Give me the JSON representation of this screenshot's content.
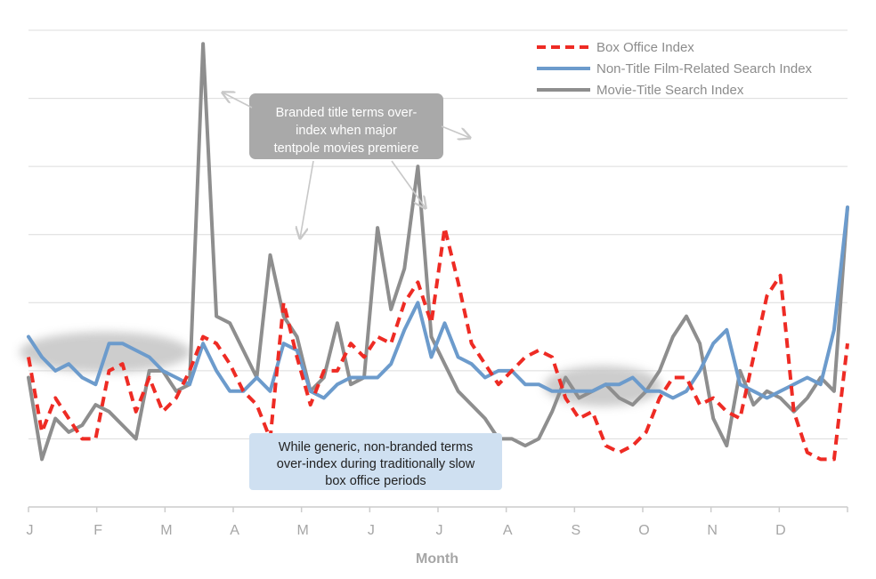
{
  "chart_data": {
    "type": "line",
    "xlabel": "Month",
    "ylabel": "",
    "x_ticks": [
      "J",
      "F",
      "M",
      "A",
      "M",
      "J",
      "J",
      "A",
      "S",
      "O",
      "N",
      "D"
    ],
    "grid": "horizontal",
    "legend_position": "top-right",
    "ylim": [
      0,
      70
    ],
    "series": [
      {
        "name": "Box Office Index",
        "color": "#ee2b24",
        "style": "dashed",
        "values": [
          22,
          11,
          16,
          13,
          10,
          10,
          20,
          21,
          14,
          19,
          14,
          16,
          20,
          25,
          24,
          21,
          17,
          15,
          10,
          30,
          22,
          15,
          20,
          20,
          24,
          22,
          25,
          24,
          30,
          33,
          27,
          41,
          33,
          24,
          21,
          18,
          20,
          22,
          23,
          22,
          16,
          13,
          14,
          9,
          8,
          9,
          11,
          16,
          19,
          19,
          15,
          16,
          14,
          13,
          22,
          31,
          34,
          14,
          8,
          7,
          7,
          24
        ]
      },
      {
        "name": "Non-Title Film-Related Search Index",
        "color": "#6c9bcc",
        "style": "solid",
        "values": [
          25,
          22,
          20,
          21,
          19,
          18,
          24,
          24,
          23,
          22,
          20,
          19,
          18,
          24,
          20,
          17,
          17,
          19,
          17,
          24,
          23,
          17,
          16,
          18,
          19,
          19,
          19,
          21,
          26,
          30,
          22,
          27,
          22,
          21,
          19,
          20,
          20,
          18,
          18,
          17,
          17,
          17,
          17,
          18,
          18,
          19,
          17,
          17,
          16,
          17,
          20,
          24,
          26,
          18,
          17,
          16,
          17,
          18,
          19,
          18,
          26,
          44
        ]
      },
      {
        "name": "Movie-Title Search Index",
        "color": "#8e8e8e",
        "style": "solid",
        "values": [
          19,
          7,
          13,
          11,
          12,
          15,
          14,
          12,
          10,
          20,
          20,
          17,
          18,
          68,
          28,
          27,
          23,
          19,
          37,
          28,
          25,
          17,
          19,
          27,
          18,
          19,
          41,
          29,
          35,
          50,
          25,
          21,
          17,
          15,
          13,
          10,
          10,
          9,
          10,
          14,
          19,
          16,
          17,
          18,
          16,
          15,
          17,
          20,
          25,
          28,
          24,
          13,
          9,
          20,
          15,
          17,
          16,
          14,
          16,
          19,
          17,
          44
        ]
      }
    ],
    "annotations": {
      "branded": "Branded title terms over-\nindex when major\ntentpole movies premiere",
      "generic": "While generic, non-branded terms\nover-index during traditionally slow\nbox office periods"
    }
  },
  "colors": {
    "grid": "#dcdcdc",
    "axis": "#cccccc",
    "callout_gray": "#a9a9a9",
    "callout_blue": "#cfe0f1",
    "highlight_ellipse": "#c8c8c8"
  }
}
